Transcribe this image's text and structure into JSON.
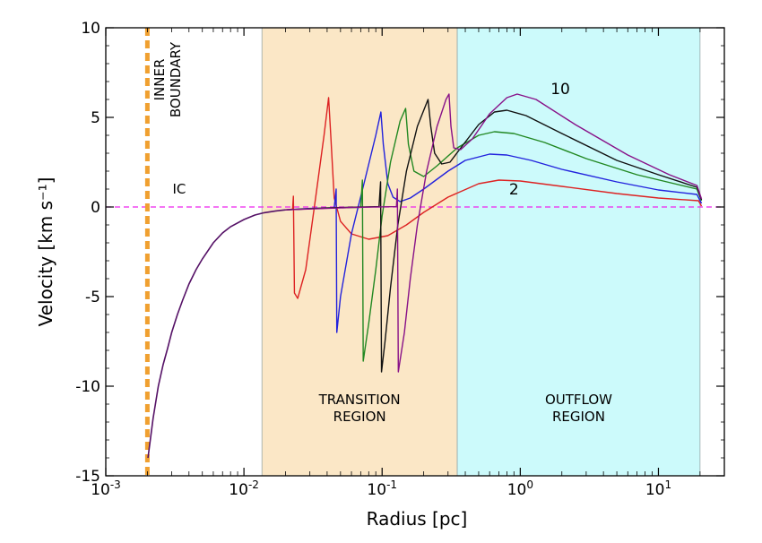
{
  "chart_data": {
    "type": "line",
    "xscale": "log",
    "xlim": [
      0.001,
      30
    ],
    "ylim": [
      -15,
      10
    ],
    "xlabel": "Radius [pc]",
    "ylabel": "Velocity [km s⁻¹]",
    "grid": false,
    "x_ticks": [
      {
        "value": 0.001,
        "base": "10",
        "exp": "-3"
      },
      {
        "value": 0.01,
        "base": "10",
        "exp": "-2"
      },
      {
        "value": 0.1,
        "base": "10",
        "exp": "-1"
      },
      {
        "value": 1,
        "base": "10",
        "exp": "0"
      },
      {
        "value": 10,
        "base": "10",
        "exp": "1"
      }
    ],
    "y_ticks": [
      {
        "value": 10,
        "label": "10"
      },
      {
        "value": 5,
        "label": "5"
      },
      {
        "value": 0,
        "label": "0"
      },
      {
        "value": -5,
        "label": "-5"
      },
      {
        "value": -10,
        "label": "-10"
      },
      {
        "value": -15,
        "label": "-15"
      }
    ],
    "regions": [
      {
        "label_lines": [
          "TRANSITION",
          "REGION"
        ],
        "x_range": [
          0.0135,
          0.35
        ],
        "label_y": -11.5,
        "color": "#fbe7c6"
      },
      {
        "label_lines": [
          "OUTFLOW",
          "REGION"
        ],
        "x_range": [
          0.35,
          20
        ],
        "label_y": -11.5,
        "color": "#ccfafb"
      }
    ],
    "inner_boundary": {
      "x": 0.002,
      "label_lines": [
        "INNER",
        "BOUNDARY"
      ],
      "color": "#f0a030"
    },
    "ic_line": {
      "y": 0,
      "label": "IC",
      "color": "#ee22ee"
    },
    "curve_labels": [
      {
        "text": "10",
        "x": 1.95,
        "y": 6.3
      },
      {
        "text": "2",
        "x": 0.9,
        "y": 0.7
      }
    ],
    "infall": [
      [
        0.00202,
        -14.0
      ],
      [
        0.0021,
        -13.0
      ],
      [
        0.0022,
        -11.8
      ],
      [
        0.0024,
        -10.0
      ],
      [
        0.0026,
        -8.8
      ],
      [
        0.0028,
        -7.9
      ],
      [
        0.003,
        -7.0
      ],
      [
        0.0033,
        -6.0
      ],
      [
        0.0036,
        -5.2
      ],
      [
        0.004,
        -4.3
      ],
      [
        0.0045,
        -3.5
      ],
      [
        0.005,
        -2.9
      ],
      [
        0.006,
        -2.0
      ],
      [
        0.007,
        -1.45
      ],
      [
        0.008,
        -1.1
      ],
      [
        0.01,
        -0.7
      ],
      [
        0.012,
        -0.45
      ],
      [
        0.014,
        -0.32
      ],
      [
        0.017,
        -0.22
      ],
      [
        0.02,
        -0.16
      ]
    ],
    "series": [
      {
        "color": "#dd2222",
        "values": [
          [
            0.02,
            -0.16
          ],
          [
            0.0225,
            -0.12
          ],
          [
            0.0228,
            0.6
          ],
          [
            0.0232,
            -4.8
          ],
          [
            0.0245,
            -5.1
          ],
          [
            0.028,
            -3.5
          ],
          [
            0.033,
            0.5
          ],
          [
            0.038,
            4.0
          ],
          [
            0.041,
            6.1
          ],
          [
            0.0425,
            4.0
          ],
          [
            0.045,
            0.5
          ],
          [
            0.05,
            -0.8
          ],
          [
            0.06,
            -1.5
          ],
          [
            0.08,
            -1.8
          ],
          [
            0.11,
            -1.6
          ],
          [
            0.15,
            -1.0
          ],
          [
            0.2,
            -0.3
          ],
          [
            0.3,
            0.55
          ],
          [
            0.5,
            1.3
          ],
          [
            0.7,
            1.5
          ],
          [
            1.0,
            1.45
          ],
          [
            2.0,
            1.15
          ],
          [
            5.0,
            0.75
          ],
          [
            10.0,
            0.5
          ],
          [
            19.5,
            0.35
          ],
          [
            20.5,
            0.05
          ]
        ]
      },
      {
        "color": "#2222dd",
        "values": [
          [
            0.02,
            -0.16
          ],
          [
            0.03,
            -0.08
          ],
          [
            0.045,
            -0.05
          ],
          [
            0.0465,
            1.0
          ],
          [
            0.047,
            -7.0
          ],
          [
            0.05,
            -5.0
          ],
          [
            0.06,
            -1.5
          ],
          [
            0.075,
            1.5
          ],
          [
            0.09,
            4.0
          ],
          [
            0.098,
            5.3
          ],
          [
            0.102,
            3.5
          ],
          [
            0.11,
            1.3
          ],
          [
            0.12,
            0.55
          ],
          [
            0.135,
            0.3
          ],
          [
            0.16,
            0.5
          ],
          [
            0.2,
            1.0
          ],
          [
            0.3,
            2.0
          ],
          [
            0.4,
            2.6
          ],
          [
            0.6,
            2.95
          ],
          [
            0.8,
            2.9
          ],
          [
            1.2,
            2.6
          ],
          [
            2.0,
            2.1
          ],
          [
            5.0,
            1.4
          ],
          [
            10.0,
            0.95
          ],
          [
            19.0,
            0.7
          ],
          [
            20.5,
            0.2
          ]
        ]
      },
      {
        "color": "#228822",
        "values": [
          [
            0.02,
            -0.16
          ],
          [
            0.04,
            -0.05
          ],
          [
            0.07,
            -0.02
          ],
          [
            0.072,
            1.5
          ],
          [
            0.073,
            -8.6
          ],
          [
            0.08,
            -6.5
          ],
          [
            0.09,
            -3.5
          ],
          [
            0.1,
            -0.5
          ],
          [
            0.115,
            2.5
          ],
          [
            0.135,
            4.8
          ],
          [
            0.148,
            5.5
          ],
          [
            0.155,
            3.5
          ],
          [
            0.17,
            2.0
          ],
          [
            0.2,
            1.7
          ],
          [
            0.25,
            2.3
          ],
          [
            0.35,
            3.3
          ],
          [
            0.5,
            4.0
          ],
          [
            0.65,
            4.2
          ],
          [
            0.9,
            4.1
          ],
          [
            1.5,
            3.6
          ],
          [
            3.0,
            2.7
          ],
          [
            7.0,
            1.8
          ],
          [
            19.0,
            1.0
          ],
          [
            20.5,
            0.35
          ]
        ]
      },
      {
        "color": "#111111",
        "values": [
          [
            0.02,
            -0.16
          ],
          [
            0.05,
            -0.03
          ],
          [
            0.095,
            0.02
          ],
          [
            0.0975,
            1.4
          ],
          [
            0.099,
            -9.2
          ],
          [
            0.105,
            -7.5
          ],
          [
            0.115,
            -4.5
          ],
          [
            0.13,
            -1.0
          ],
          [
            0.15,
            2.0
          ],
          [
            0.18,
            4.5
          ],
          [
            0.215,
            6.0
          ],
          [
            0.225,
            4.5
          ],
          [
            0.24,
            3.0
          ],
          [
            0.27,
            2.4
          ],
          [
            0.31,
            2.5
          ],
          [
            0.38,
            3.4
          ],
          [
            0.5,
            4.6
          ],
          [
            0.65,
            5.3
          ],
          [
            0.8,
            5.4
          ],
          [
            1.1,
            5.1
          ],
          [
            2.0,
            4.1
          ],
          [
            5.0,
            2.6
          ],
          [
            10.0,
            1.8
          ],
          [
            19.0,
            1.1
          ],
          [
            20.5,
            0.4
          ]
        ]
      },
      {
        "color": "#881188",
        "values": [
          [
            0.02,
            -0.16
          ],
          [
            0.06,
            -0.03
          ],
          [
            0.127,
            0.02
          ],
          [
            0.129,
            1.0
          ],
          [
            0.131,
            -9.2
          ],
          [
            0.145,
            -7.0
          ],
          [
            0.16,
            -4.0
          ],
          [
            0.18,
            -1.0
          ],
          [
            0.21,
            2.0
          ],
          [
            0.25,
            4.5
          ],
          [
            0.29,
            6.0
          ],
          [
            0.305,
            6.3
          ],
          [
            0.315,
            4.5
          ],
          [
            0.33,
            3.3
          ],
          [
            0.37,
            3.2
          ],
          [
            0.45,
            3.8
          ],
          [
            0.6,
            5.2
          ],
          [
            0.8,
            6.1
          ],
          [
            0.95,
            6.3
          ],
          [
            1.3,
            6.0
          ],
          [
            2.5,
            4.6
          ],
          [
            6.0,
            2.9
          ],
          [
            12.0,
            1.8
          ],
          [
            19.0,
            1.2
          ],
          [
            20.5,
            0.45
          ]
        ]
      }
    ]
  }
}
